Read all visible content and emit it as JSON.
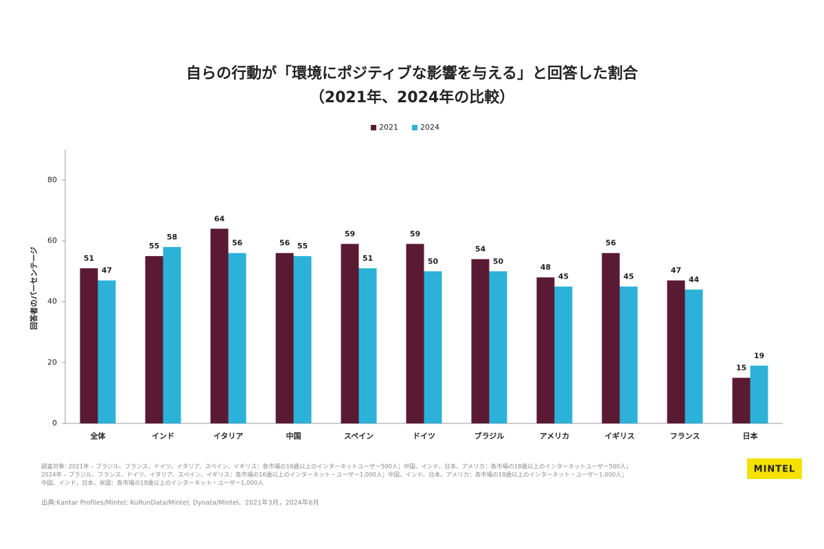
{
  "chart_data": {
    "type": "bar",
    "title": "自らの行動が「環境にポジティブな影響を与える」と回答した割合",
    "subtitle": "（2021年、2024年の比較）",
    "y_label": "回答者のパーセンテージ",
    "categories": [
      "全体",
      "インド",
      "イタリア",
      "中国",
      "スペイン",
      "ドイツ",
      "ブラジル",
      "アメリカ",
      "イギリス",
      "フランス",
      "日本"
    ],
    "series": [
      {
        "name": "2021",
        "color": "#5a1a33",
        "values": [
          51,
          55,
          64,
          56,
          59,
          59,
          54,
          48,
          56,
          47,
          15
        ]
      },
      {
        "name": "2024",
        "color": "#2cb2d8",
        "values": [
          47,
          58,
          56,
          55,
          51,
          50,
          50,
          45,
          45,
          44,
          19
        ]
      }
    ],
    "ylim": [
      0,
      90
    ],
    "yticks": [
      0,
      20,
      40,
      60,
      80
    ],
    "grid": false,
    "legend": "top",
    "notes": [
      "調査対象: 2021年 – ブラジル、フランス、ドイツ、イタリア、スペイン、イギリス：各市場の16歳以上のインターネットユーザー500人；中国、インド、日本、アメリカ：各市場の18歳以上のインターネットユーザー500人；",
      "2024年 – ブラジル、フランス、ドイツ、イタリア、スペイン、イギリス：各市場の16歳以上のインターネット・ユーザー1,000人；中国、インド、日本、アメリカ：各市場の18歳以上のインターネット・ユーザー1,000人；",
      "中国、インド、日本、米国：各市場の18歳以上のインターネット・ユーザー1,000人"
    ],
    "source": "出典:Kantar Profiles/Mintel; KuRunData/Mintel; Dynata/Mintel、2021年3月，2024年6月",
    "logo": "MINTEL"
  }
}
